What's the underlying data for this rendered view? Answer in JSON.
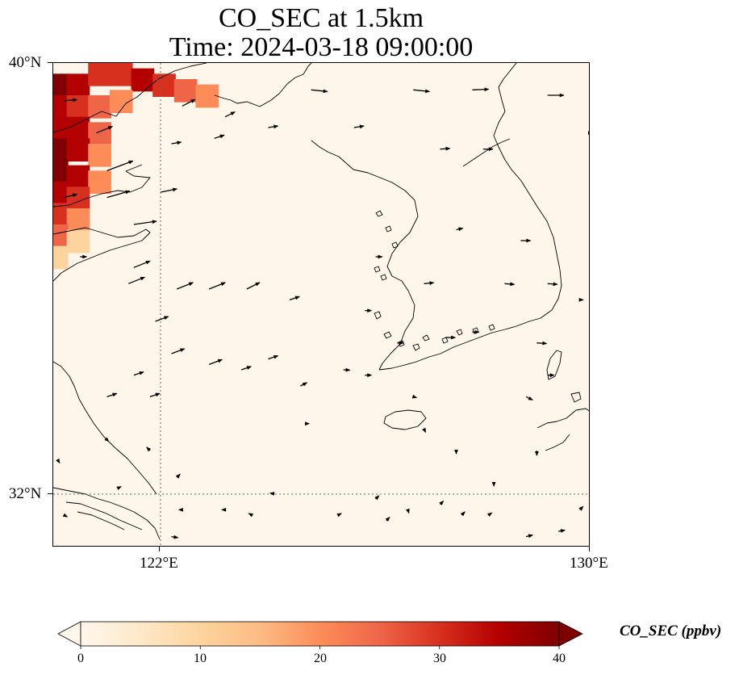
{
  "title": {
    "line1": "CO_SEC at 1.5km",
    "line2": "Time: 2024-03-18 09:00:00"
  },
  "map": {
    "lat_labels": [
      "40°N",
      "32°N"
    ],
    "lon_labels": [
      "122°E",
      "130°E"
    ],
    "extent": {
      "lon_min": 120,
      "lon_max": 130,
      "lat_min": 31,
      "lat_max": 40
    },
    "gridlines": {
      "lons": [
        122
      ],
      "lats": [
        32
      ]
    },
    "field_colors": {
      "background": "#fef6ea",
      "coastline": "#000000"
    }
  },
  "colorbar": {
    "label": "CO_SEC (ppbv)",
    "ticks": [
      "0",
      "10",
      "20",
      "30",
      "40"
    ],
    "range": [
      0,
      40
    ],
    "colors": [
      "#fff7ec",
      "#fee8c8",
      "#fdd49e",
      "#fdbb84",
      "#fc8d59",
      "#ef6548",
      "#d7301f",
      "#b30000",
      "#7f0000"
    ]
  },
  "plume_cells": [
    {
      "lon": 120.2,
      "lat": 39.6,
      "v": 38
    },
    {
      "lon": 120.6,
      "lat": 39.6,
      "v": 36
    },
    {
      "lon": 121.0,
      "lat": 39.8,
      "v": 32
    },
    {
      "lon": 121.4,
      "lat": 39.8,
      "v": 30
    },
    {
      "lon": 121.8,
      "lat": 39.7,
      "v": 34
    },
    {
      "lon": 122.2,
      "lat": 39.6,
      "v": 30
    },
    {
      "lon": 122.6,
      "lat": 39.5,
      "v": 26
    },
    {
      "lon": 123.0,
      "lat": 39.4,
      "v": 18
    },
    {
      "lon": 120.2,
      "lat": 39.2,
      "v": 36
    },
    {
      "lon": 120.6,
      "lat": 39.2,
      "v": 30
    },
    {
      "lon": 121.0,
      "lat": 39.2,
      "v": 24
    },
    {
      "lon": 121.4,
      "lat": 39.3,
      "v": 22
    },
    {
      "lon": 120.2,
      "lat": 38.8,
      "v": 34
    },
    {
      "lon": 120.6,
      "lat": 38.8,
      "v": 36
    },
    {
      "lon": 121.0,
      "lat": 38.7,
      "v": 26
    },
    {
      "lon": 120.2,
      "lat": 38.4,
      "v": 39
    },
    {
      "lon": 120.6,
      "lat": 38.4,
      "v": 36
    },
    {
      "lon": 121.0,
      "lat": 38.3,
      "v": 22
    },
    {
      "lon": 120.2,
      "lat": 38.0,
      "v": 38
    },
    {
      "lon": 120.6,
      "lat": 37.9,
      "v": 34
    },
    {
      "lon": 121.0,
      "lat": 37.8,
      "v": 20
    },
    {
      "lon": 120.2,
      "lat": 37.6,
      "v": 36
    },
    {
      "lon": 120.6,
      "lat": 37.5,
      "v": 30
    },
    {
      "lon": 120.2,
      "lat": 37.2,
      "v": 32
    },
    {
      "lon": 120.6,
      "lat": 37.1,
      "v": 20
    },
    {
      "lon": 120.2,
      "lat": 36.8,
      "v": 24
    },
    {
      "lon": 120.6,
      "lat": 36.7,
      "v": 12
    },
    {
      "lon": 120.2,
      "lat": 36.4,
      "v": 10
    }
  ],
  "wind_vectors": [
    {
      "lon": 120.2,
      "lat": 39.3,
      "u": 4,
      "v": 0.3
    },
    {
      "lon": 120.8,
      "lat": 38.7,
      "u": 5,
      "v": 2
    },
    {
      "lon": 121.0,
      "lat": 38.0,
      "u": 8,
      "v": 3
    },
    {
      "lon": 120.2,
      "lat": 37.5,
      "u": 4,
      "v": 1
    },
    {
      "lon": 121.0,
      "lat": 37.5,
      "u": 7,
      "v": 2
    },
    {
      "lon": 121.5,
      "lat": 37.0,
      "u": 7,
      "v": 1
    },
    {
      "lon": 122.0,
      "lat": 37.6,
      "u": 5,
      "v": 1
    },
    {
      "lon": 122.2,
      "lat": 38.5,
      "u": 3,
      "v": 0.5
    },
    {
      "lon": 123.0,
      "lat": 38.6,
      "u": 3,
      "v": 1
    },
    {
      "lon": 123.2,
      "lat": 39.0,
      "u": 3,
      "v": 1.5
    },
    {
      "lon": 122.4,
      "lat": 39.2,
      "u": 4,
      "v": 2
    },
    {
      "lon": 124.8,
      "lat": 39.5,
      "u": 5,
      "v": -0.5
    },
    {
      "lon": 125.6,
      "lat": 38.8,
      "u": 3,
      "v": 0.5
    },
    {
      "lon": 126.7,
      "lat": 39.5,
      "u": 5,
      "v": -0.5
    },
    {
      "lon": 127.8,
      "lat": 39.5,
      "u": 5,
      "v": 0.2
    },
    {
      "lon": 129.2,
      "lat": 39.4,
      "u": 5,
      "v": 0
    },
    {
      "lon": 124.0,
      "lat": 38.8,
      "u": 3,
      "v": 0.5
    },
    {
      "lon": 127.2,
      "lat": 38.4,
      "u": 3,
      "v": 0.2
    },
    {
      "lon": 128.0,
      "lat": 38.4,
      "u": 3,
      "v": 0
    },
    {
      "lon": 120.5,
      "lat": 36.4,
      "u": 2,
      "v": 0
    },
    {
      "lon": 121.5,
      "lat": 36.2,
      "u": 5,
      "v": 2
    },
    {
      "lon": 121.4,
      "lat": 35.9,
      "u": 5,
      "v": 2
    },
    {
      "lon": 122.3,
      "lat": 35.8,
      "u": 5,
      "v": 2
    },
    {
      "lon": 122.9,
      "lat": 35.8,
      "u": 5,
      "v": 2
    },
    {
      "lon": 123.6,
      "lat": 35.8,
      "u": 4,
      "v": 2
    },
    {
      "lon": 124.4,
      "lat": 35.6,
      "u": 3,
      "v": 1
    },
    {
      "lon": 125.8,
      "lat": 35.4,
      "u": 2,
      "v": 0
    },
    {
      "lon": 126.9,
      "lat": 35.9,
      "u": 3,
      "v": 0.3
    },
    {
      "lon": 128.4,
      "lat": 35.9,
      "u": 3,
      "v": -0.2
    },
    {
      "lon": 121.9,
      "lat": 35.2,
      "u": 4,
      "v": 1.5
    },
    {
      "lon": 122.2,
      "lat": 34.6,
      "u": 4,
      "v": 1.5
    },
    {
      "lon": 121.5,
      "lat": 34.2,
      "u": 3,
      "v": 1
    },
    {
      "lon": 122.9,
      "lat": 34.4,
      "u": 4,
      "v": 1.5
    },
    {
      "lon": 123.5,
      "lat": 34.3,
      "u": 3,
      "v": 1
    },
    {
      "lon": 124.0,
      "lat": 34.5,
      "u": 3,
      "v": 1
    },
    {
      "lon": 121.0,
      "lat": 33.8,
      "u": 3,
      "v": 1
    },
    {
      "lon": 121.8,
      "lat": 33.8,
      "u": 3,
      "v": 1
    },
    {
      "lon": 124.6,
      "lat": 34.0,
      "u": 2,
      "v": 1
    },
    {
      "lon": 125.8,
      "lat": 34.2,
      "u": 2,
      "v": 0
    },
    {
      "lon": 126.4,
      "lat": 34.8,
      "u": 2,
      "v": 0
    },
    {
      "lon": 127.3,
      "lat": 34.9,
      "u": 3,
      "v": 0
    },
    {
      "lon": 127.8,
      "lat": 35.0,
      "u": 2,
      "v": 0
    },
    {
      "lon": 129.0,
      "lat": 34.8,
      "u": 3,
      "v": -0.2
    },
    {
      "lon": 129.2,
      "lat": 34.2,
      "u": 2,
      "v": 0
    },
    {
      "lon": 128.8,
      "lat": 33.8,
      "u": 2,
      "v": -1
    },
    {
      "lon": 124.7,
      "lat": 33.3,
      "u": 1,
      "v": 0
    },
    {
      "lon": 126.9,
      "lat": 33.2,
      "u": 0.5,
      "v": -1
    },
    {
      "lon": 127.5,
      "lat": 32.8,
      "u": 0,
      "v": -1
    },
    {
      "lon": 128.2,
      "lat": 32.2,
      "u": 0,
      "v": -1
    },
    {
      "lon": 129.0,
      "lat": 32.8,
      "u": 0,
      "v": -1.5
    },
    {
      "lon": 121.2,
      "lat": 32.1,
      "u": 1,
      "v": 0.5
    },
    {
      "lon": 121.8,
      "lat": 32.8,
      "u": -1,
      "v": 1
    },
    {
      "lon": 122.3,
      "lat": 32.3,
      "u": 1,
      "v": 1
    },
    {
      "lon": 123.7,
      "lat": 31.6,
      "u": -1,
      "v": 0.5
    },
    {
      "lon": 124.1,
      "lat": 32.0,
      "u": -1,
      "v": 0.1
    },
    {
      "lon": 125.3,
      "lat": 31.6,
      "u": 1,
      "v": 0.5
    },
    {
      "lon": 126.0,
      "lat": 31.9,
      "u": 1,
      "v": 1
    },
    {
      "lon": 126.2,
      "lat": 31.5,
      "u": 1,
      "v": 1
    },
    {
      "lon": 127.2,
      "lat": 31.8,
      "u": 1,
      "v": 1
    },
    {
      "lon": 127.6,
      "lat": 31.6,
      "u": 1,
      "v": 1
    },
    {
      "lon": 128.1,
      "lat": 31.6,
      "u": 1,
      "v": 0.7
    },
    {
      "lon": 130.0,
      "lat": 31.8,
      "u": 0,
      "v": -1
    },
    {
      "lon": 120.2,
      "lat": 31.6,
      "u": 1,
      "v": -0.5
    },
    {
      "lon": 122.2,
      "lat": 31.2,
      "u": 2,
      "v": -0.3
    },
    {
      "lon": 123.2,
      "lat": 31.7,
      "u": -1,
      "v": 0
    },
    {
      "lon": 122.4,
      "lat": 31.7,
      "u": -1,
      "v": 0
    },
    {
      "lon": 126.6,
      "lat": 31.7,
      "u": 0.3,
      "v": -1
    },
    {
      "lon": 128.8,
      "lat": 31.2,
      "u": 2,
      "v": 0.5
    },
    {
      "lon": 129.4,
      "lat": 31.3,
      "u": 2,
      "v": 0.3
    },
    {
      "lon": 129.8,
      "lat": 31.7,
      "u": 1,
      "v": 1
    },
    {
      "lon": 121.0,
      "lat": 33.0,
      "u": 0.5,
      "v": -0.5
    },
    {
      "lon": 120.1,
      "lat": 32.6,
      "u": 0.3,
      "v": -0.5
    },
    {
      "lon": 125.4,
      "lat": 34.3,
      "u": 2,
      "v": -0.1
    },
    {
      "lon": 126.7,
      "lat": 33.8,
      "u": 1,
      "v": -0.3
    },
    {
      "lon": 129.2,
      "lat": 35.9,
      "u": 3,
      "v": -0.2
    },
    {
      "lon": 129.8,
      "lat": 35.6,
      "u": 1,
      "v": 0
    },
    {
      "lon": 126.0,
      "lat": 36.4,
      "u": 2,
      "v": 0
    },
    {
      "lon": 127.5,
      "lat": 36.9,
      "u": 2,
      "v": 0.5
    },
    {
      "lon": 128.7,
      "lat": 36.7,
      "u": 3,
      "v": 0
    },
    {
      "lon": 130.0,
      "lat": 38.7,
      "u": 0.5,
      "v": 0
    }
  ]
}
